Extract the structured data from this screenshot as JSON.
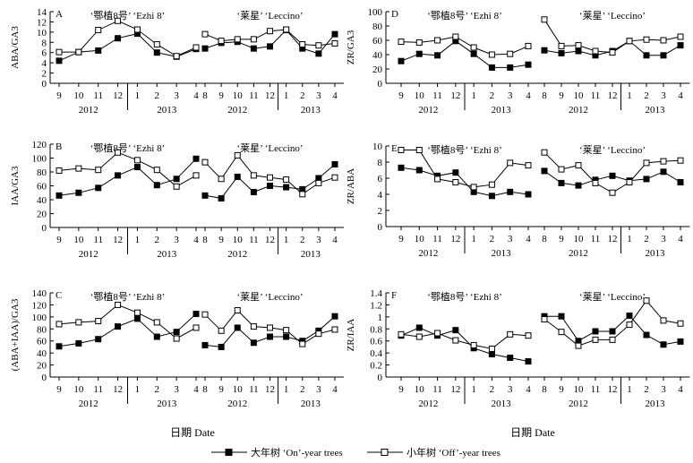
{
  "xlabel": "日期 Date",
  "legend": [
    {
      "label": "大年树 ‘On’-year trees",
      "marker": "filled-square"
    },
    {
      "label": "小年树 ‘Off’-year trees",
      "marker": "open-square"
    }
  ],
  "chart_data": [
    {
      "type": "line",
      "panel": "A",
      "ylabel": "ABA/GA3",
      "ylim": [
        0,
        14
      ],
      "yticks": [
        0,
        2,
        4,
        6,
        8,
        10,
        12,
        14
      ],
      "groups": [
        {
          "title": "‘鄂植8号’ ‘Ezhi 8’",
          "categories": [
            "9",
            "10",
            "11",
            "12",
            "1",
            "2",
            "3",
            "4"
          ],
          "years": [
            {
              "label": "2012",
              "from": 0,
              "to": 3
            },
            {
              "label": "2013",
              "from": 4,
              "to": 7
            }
          ],
          "series": [
            {
              "name": "大年树 ‘On’-year trees",
              "values": [
                4.4,
                6.1,
                6.4,
                8.8,
                9.7,
                6.0,
                5.2,
                6.7
              ]
            },
            {
              "name": "小年树 ‘Off’-year trees",
              "values": [
                6.1,
                6.1,
                10.4,
                12.2,
                10.5,
                7.6,
                5.3,
                7.0
              ]
            }
          ]
        },
        {
          "title": "‘莱星’ ‘Leccino’",
          "categories": [
            "8",
            "9",
            "10",
            "11",
            "12",
            "1",
            "2",
            "3",
            "4"
          ],
          "years": [
            {
              "label": "2012",
              "from": 0,
              "to": 4
            },
            {
              "label": "2013",
              "from": 5,
              "to": 8
            }
          ],
          "series": [
            {
              "name": "大年树 ‘On’-year trees",
              "values": [
                6.8,
                7.9,
                8.1,
                6.8,
                7.2,
                10.4,
                6.8,
                5.8,
                9.6
              ]
            },
            {
              "name": "小年树 ‘Off’-year trees",
              "values": [
                9.6,
                8.3,
                8.6,
                8.6,
                10.2,
                10.5,
                7.6,
                7.4,
                7.8
              ]
            }
          ]
        }
      ]
    },
    {
      "type": "line",
      "panel": "B",
      "ylabel": "IAA/GA3",
      "ylim": [
        0,
        120
      ],
      "yticks": [
        0,
        20,
        40,
        60,
        80,
        100,
        120
      ],
      "groups": [
        {
          "title": "‘鄂植8号’ ‘Ezhi 8’",
          "categories": [
            "9",
            "10",
            "11",
            "12",
            "1",
            "2",
            "3",
            "4"
          ],
          "years": [
            {
              "label": "2012",
              "from": 0,
              "to": 3
            },
            {
              "label": "2013",
              "from": 4,
              "to": 7
            }
          ],
          "series": [
            {
              "name": "大年树 ‘On’-year trees",
              "values": [
                46,
                50,
                57,
                75,
                87,
                61,
                70,
                99
              ]
            },
            {
              "name": "小年树 ‘Off’-year trees",
              "values": [
                82,
                85,
                83,
                108,
                97,
                83,
                59,
                75
              ]
            }
          ]
        },
        {
          "title": "‘莱星’ ‘Leccino’",
          "categories": [
            "8",
            "9",
            "10",
            "11",
            "12",
            "1",
            "2",
            "3",
            "4"
          ],
          "years": [
            {
              "label": "2012",
              "from": 0,
              "to": 4
            },
            {
              "label": "2013",
              "from": 5,
              "to": 8
            }
          ],
          "series": [
            {
              "name": "大年树 ‘On’-year trees",
              "values": [
                46,
                42,
                73,
                51,
                60,
                58,
                55,
                71,
                91
              ]
            },
            {
              "name": "小年树 ‘Off’-year trees",
              "values": [
                94,
                70,
                104,
                75,
                72,
                69,
                48,
                64,
                72
              ]
            }
          ]
        }
      ]
    },
    {
      "type": "line",
      "panel": "C",
      "ylabel": "(ABA+IAA)/GA3",
      "ylim": [
        0,
        140
      ],
      "yticks": [
        0,
        20,
        40,
        60,
        80,
        100,
        120,
        140
      ],
      "groups": [
        {
          "title": "‘鄂植8号’ ‘Ezhi 8’",
          "categories": [
            "9",
            "10",
            "11",
            "12",
            "1",
            "2",
            "3",
            "4"
          ],
          "years": [
            {
              "label": "2012",
              "from": 0,
              "to": 3
            },
            {
              "label": "2013",
              "from": 4,
              "to": 7
            }
          ],
          "series": [
            {
              "name": "大年树 ‘On’-year trees",
              "values": [
                51,
                56,
                63,
                84,
                97,
                67,
                75,
                105
              ]
            },
            {
              "name": "小年树 ‘Off’-year trees",
              "values": [
                88,
                91,
                93,
                120,
                107,
                91,
                64,
                82
              ]
            }
          ]
        },
        {
          "title": "‘莱星’ ‘Leccino’",
          "categories": [
            "8",
            "9",
            "10",
            "11",
            "12",
            "1",
            "2",
            "3",
            "4"
          ],
          "years": [
            {
              "label": "2012",
              "from": 0,
              "to": 4
            },
            {
              "label": "2013",
              "from": 5,
              "to": 8
            }
          ],
          "series": [
            {
              "name": "大年树 ‘On’-year trees",
              "values": [
                53,
                50,
                82,
                57,
                67,
                67,
                60,
                77,
                101
              ]
            },
            {
              "name": "小年树 ‘Off’-year trees",
              "values": [
                104,
                77,
                111,
                84,
                82,
                78,
                55,
                72,
                79
              ]
            }
          ]
        }
      ]
    },
    {
      "type": "line",
      "panel": "D",
      "ylabel": "ZR/GA3",
      "ylim": [
        0,
        100
      ],
      "yticks": [
        0,
        20,
        40,
        60,
        80,
        100
      ],
      "groups": [
        {
          "title": "‘鄂植8号’ ‘Ezhi 8’",
          "categories": [
            "9",
            "10",
            "11",
            "12",
            "1",
            "2",
            "3",
            "4"
          ],
          "years": [
            {
              "label": "2012",
              "from": 0,
              "to": 3
            },
            {
              "label": "2013",
              "from": 4,
              "to": 7
            }
          ],
          "series": [
            {
              "name": "大年树 ‘On’-year trees",
              "values": [
                31,
                41,
                39,
                59,
                41,
                22,
                22,
                26
              ]
            },
            {
              "name": "小年树 ‘Off’-year trees",
              "values": [
                58,
                57,
                60,
                65,
                50,
                40,
                41,
                52
              ]
            }
          ]
        },
        {
          "title": "‘莱星’ ‘Leccino’",
          "categories": [
            "8",
            "9",
            "10",
            "11",
            "12",
            "1",
            "2",
            "3",
            "4"
          ],
          "years": [
            {
              "label": "2012",
              "from": 0,
              "to": 4
            },
            {
              "label": "2013",
              "from": 5,
              "to": 8
            }
          ],
          "series": [
            {
              "name": "大年树 ‘On’-year trees",
              "values": [
                46,
                42,
                45,
                39,
                45,
                59,
                39,
                39,
                53
              ]
            },
            {
              "name": "小年树 ‘Off’-year trees",
              "values": [
                89,
                52,
                53,
                45,
                43,
                59,
                61,
                60,
                65
              ]
            }
          ]
        }
      ]
    },
    {
      "type": "line",
      "panel": "E",
      "ylabel": "ZR/ABA",
      "ylim": [
        0,
        10
      ],
      "yticks": [
        0,
        2,
        4,
        6,
        8,
        10
      ],
      "groups": [
        {
          "title": "‘鄂植8号’ ‘Ezhi 8’",
          "categories": [
            "9",
            "10",
            "11",
            "12",
            "1",
            "2",
            "3",
            "4"
          ],
          "years": [
            {
              "label": "2012",
              "from": 0,
              "to": 3
            },
            {
              "label": "2013",
              "from": 4,
              "to": 7
            }
          ],
          "series": [
            {
              "name": "大年树 ‘On’-year trees",
              "values": [
                7.3,
                7.0,
                6.3,
                6.7,
                4.3,
                3.8,
                4.3,
                4.0
              ]
            },
            {
              "name": "小年树 ‘Off’-year trees",
              "values": [
                9.5,
                9.5,
                5.9,
                5.5,
                4.9,
                5.2,
                7.9,
                7.6
              ]
            }
          ]
        },
        {
          "title": "‘莱星’ ‘Leccino’",
          "categories": [
            "8",
            "9",
            "10",
            "11",
            "12",
            "1",
            "2",
            "3",
            "4"
          ],
          "years": [
            {
              "label": "2012",
              "from": 0,
              "to": 4
            },
            {
              "label": "2013",
              "from": 5,
              "to": 8
            }
          ],
          "series": [
            {
              "name": "大年树 ‘On’-year trees",
              "values": [
                6.9,
                5.4,
                5.1,
                5.8,
                6.3,
                5.7,
                5.9,
                6.8,
                5.5
              ]
            },
            {
              "name": "小年树 ‘Off’-year trees",
              "values": [
                9.2,
                7.1,
                7.6,
                5.4,
                4.2,
                5.5,
                7.9,
                8.1,
                8.2
              ]
            }
          ]
        }
      ]
    },
    {
      "type": "line",
      "panel": "F",
      "ylabel": "ZR/IAA",
      "ylim": [
        0,
        1.4
      ],
      "yticks": [
        0,
        0.2,
        0.4,
        0.6,
        0.8,
        1.0,
        1.2,
        1.4
      ],
      "groups": [
        {
          "title": "‘鄂植8号’ ‘Ezhi 8’",
          "categories": [
            "9",
            "10",
            "11",
            "12",
            "1",
            "2",
            "3",
            "4"
          ],
          "years": [
            {
              "label": "2012",
              "from": 0,
              "to": 3
            },
            {
              "label": "2013",
              "from": 4,
              "to": 7
            }
          ],
          "series": [
            {
              "name": "大年树 ‘On’-year trees",
              "values": [
                0.69,
                0.82,
                0.69,
                0.78,
                0.48,
                0.38,
                0.32,
                0.26
              ]
            },
            {
              "name": "小年树 ‘Off’-year trees",
              "values": [
                0.71,
                0.67,
                0.73,
                0.61,
                0.53,
                0.47,
                0.71,
                0.69
              ]
            }
          ]
        },
        {
          "title": "‘莱星’ ‘Leccino’",
          "categories": [
            "8",
            "9",
            "10",
            "11",
            "12",
            "1",
            "2",
            "3",
            "4"
          ],
          "years": [
            {
              "label": "2012",
              "from": 0,
              "to": 4
            },
            {
              "label": "2013",
              "from": 5,
              "to": 8
            }
          ],
          "series": [
            {
              "name": "大年树 ‘On’-year trees",
              "values": [
                1.01,
                1.01,
                0.6,
                0.76,
                0.76,
                1.02,
                0.7,
                0.54,
                0.59
              ]
            },
            {
              "name": "小年树 ‘Off’-year trees",
              "values": [
                0.96,
                0.75,
                0.52,
                0.62,
                0.62,
                0.87,
                1.27,
                0.94,
                0.89
              ]
            }
          ]
        }
      ]
    }
  ]
}
